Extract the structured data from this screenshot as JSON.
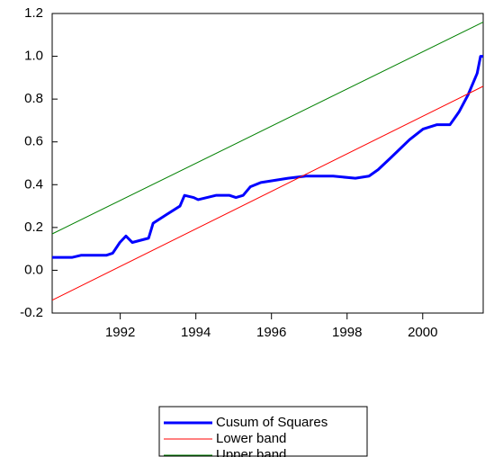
{
  "chart_data": {
    "type": "line",
    "xlim": [
      1990.2,
      2001.6
    ],
    "xticks": [
      1992,
      1994,
      1996,
      1998,
      2000
    ],
    "ylim": [
      -0.2,
      1.2
    ],
    "yticks": [
      -0.2,
      {
        "value": 0,
        "label": "0.0"
      },
      0.2,
      0.4,
      0.6,
      0.8,
      {
        "value": 1,
        "label": "1.0"
      },
      1.2
    ],
    "grid": false,
    "legend": "bottom",
    "series": [
      {
        "name": "Cusum of Squares",
        "color": "#0000ff",
        "width": 3,
        "x": [
          1990.2,
          1990.72,
          1990.96,
          1991.63,
          1991.8,
          1991.99,
          1992.15,
          1992.32,
          1992.75,
          1992.87,
          1993.22,
          1993.58,
          1993.7,
          1993.94,
          1994.06,
          1994.53,
          1994.89,
          1995.06,
          1995.25,
          1995.44,
          1995.72,
          1996.08,
          1996.44,
          1996.91,
          1997.63,
          1998.22,
          1998.58,
          1998.82,
          1999.18,
          1999.65,
          2000.01,
          2000.37,
          2000.72,
          2000.96,
          2001.2,
          2001.44,
          2001.53,
          2001.6
        ],
        "values": [
          0.06,
          0.06,
          0.07,
          0.07,
          0.08,
          0.13,
          0.16,
          0.13,
          0.15,
          0.22,
          0.26,
          0.3,
          0.35,
          0.34,
          0.33,
          0.35,
          0.35,
          0.34,
          0.35,
          0.39,
          0.41,
          0.42,
          0.43,
          0.44,
          0.44,
          0.43,
          0.44,
          0.47,
          0.53,
          0.61,
          0.66,
          0.68,
          0.68,
          0.74,
          0.82,
          0.92,
          1.0,
          1.0
        ]
      },
      {
        "name": "Lower band",
        "color": "#ff0000",
        "width": 1,
        "x": [
          1990.2,
          2001.6
        ],
        "values": [
          -0.14,
          0.86
        ]
      },
      {
        "name": "Upper band",
        "color": "#008000",
        "width": 1,
        "x": [
          1990.2,
          2001.6
        ],
        "values": [
          0.17,
          1.16
        ]
      }
    ]
  }
}
